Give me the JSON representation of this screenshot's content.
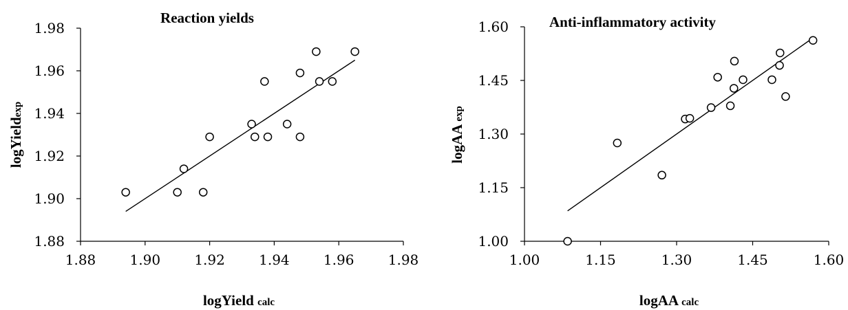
{
  "chart_data": [
    {
      "type": "scatter",
      "title": "Reaction yields",
      "xlabel": "logYield",
      "xlabel_sub": "calc",
      "ylabel": "logYield",
      "ylabel_sub": "exp",
      "xlim": [
        1.88,
        1.98
      ],
      "ylim": [
        1.88,
        1.98
      ],
      "xticks": [
        "1.88",
        "1.90",
        "1.92",
        "1.94",
        "1.96",
        "1.98"
      ],
      "yticks": [
        "1.88",
        "1.90",
        "1.92",
        "1.94",
        "1.96",
        "1.98"
      ],
      "grid": false,
      "marker": "open-circle",
      "points": [
        [
          1.894,
          1.903
        ],
        [
          1.91,
          1.903
        ],
        [
          1.912,
          1.914
        ],
        [
          1.918,
          1.903
        ],
        [
          1.92,
          1.929
        ],
        [
          1.933,
          1.935
        ],
        [
          1.934,
          1.929
        ],
        [
          1.937,
          1.955
        ],
        [
          1.938,
          1.929
        ],
        [
          1.944,
          1.935
        ],
        [
          1.948,
          1.959
        ],
        [
          1.948,
          1.929
        ],
        [
          1.953,
          1.969
        ],
        [
          1.954,
          1.955
        ],
        [
          1.958,
          1.955
        ],
        [
          1.965,
          1.969
        ]
      ],
      "trendline": {
        "x": [
          1.894,
          1.965
        ],
        "y": [
          1.894,
          1.965
        ]
      }
    },
    {
      "type": "scatter",
      "title": "Anti-inflammatory activity",
      "xlabel": "logAA",
      "xlabel_sub": "calc",
      "ylabel": "logAA",
      "ylabel_sub": "exp",
      "xlim": [
        1.0,
        1.6
      ],
      "ylim": [
        1.0,
        1.6
      ],
      "xticks": [
        "1.00",
        "1.15",
        "1.30",
        "1.45",
        "1.60"
      ],
      "yticks": [
        "1.00",
        "1.15",
        "1.30",
        "1.45",
        "1.60"
      ],
      "grid": false,
      "marker": "open-circle",
      "points": [
        [
          1.085,
          1.0
        ],
        [
          1.183,
          1.275
        ],
        [
          1.271,
          1.185
        ],
        [
          1.317,
          1.342
        ],
        [
          1.326,
          1.344
        ],
        [
          1.368,
          1.374
        ],
        [
          1.381,
          1.459
        ],
        [
          1.406,
          1.379
        ],
        [
          1.413,
          1.428
        ],
        [
          1.414,
          1.504
        ],
        [
          1.431,
          1.452
        ],
        [
          1.488,
          1.452
        ],
        [
          1.503,
          1.492
        ],
        [
          1.504,
          1.527
        ],
        [
          1.515,
          1.405
        ],
        [
          1.569,
          1.562
        ]
      ],
      "trendline": {
        "x": [
          1.085,
          1.569
        ],
        "y": [
          1.085,
          1.569
        ]
      }
    }
  ]
}
